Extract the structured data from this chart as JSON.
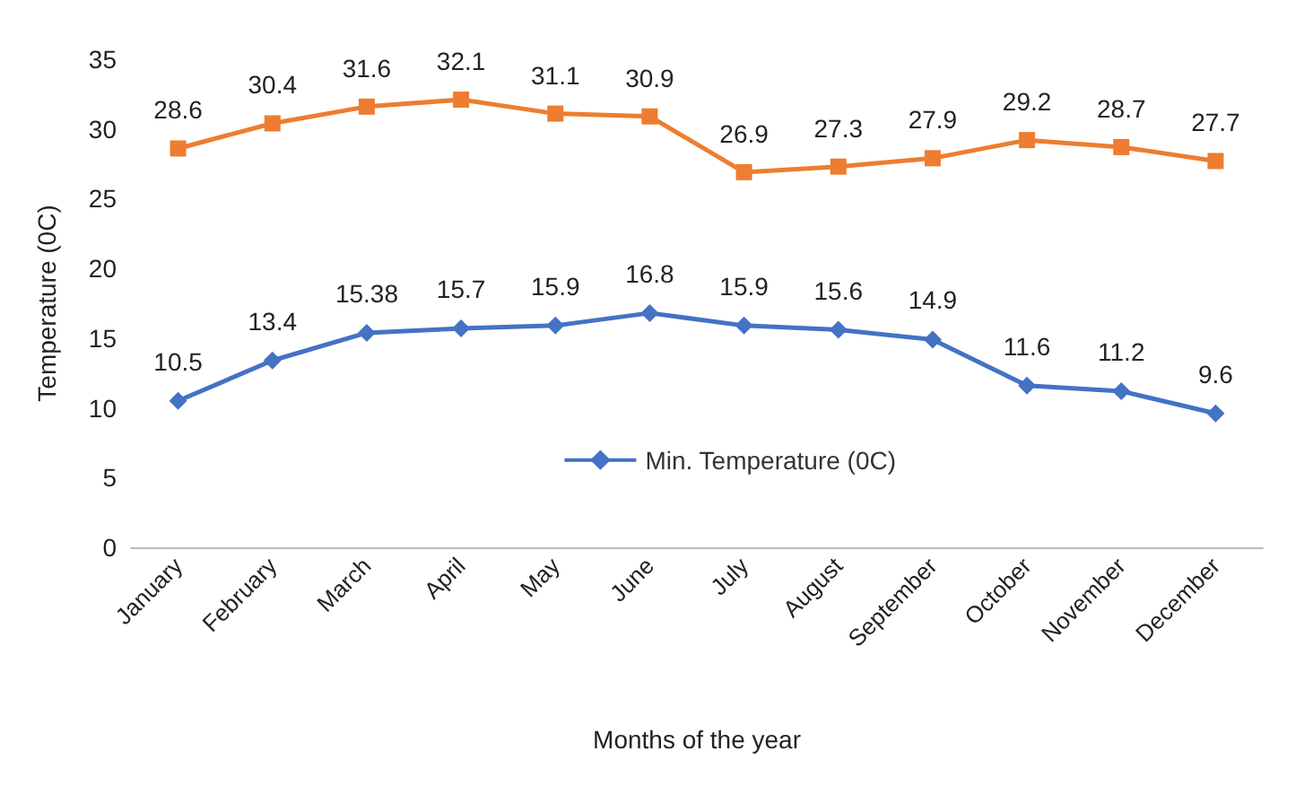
{
  "chart_data": {
    "type": "line",
    "xlabel": "Months of the year",
    "ylabel": "Temperature (0C)",
    "categories": [
      "January",
      "February",
      "March",
      "April",
      "May",
      "June",
      "July",
      "August",
      "September",
      "October",
      "November",
      "December"
    ],
    "series": [
      {
        "color": "#ed7d31",
        "marker": "square",
        "values": [
          28.6,
          30.4,
          31.6,
          32.1,
          31.1,
          30.9,
          26.9,
          27.3,
          27.9,
          29.2,
          28.7,
          27.7
        ]
      },
      {
        "name": "Min. Temperature (0C)",
        "color": "#4472c4",
        "marker": "diamond",
        "values": [
          10.5,
          13.4,
          15.38,
          15.7,
          15.9,
          16.8,
          15.9,
          15.6,
          14.9,
          11.6,
          11.2,
          9.6
        ]
      }
    ],
    "ylim": [
      0,
      35
    ],
    "yticks": [
      0,
      5,
      10,
      15,
      20,
      25,
      30,
      35
    ],
    "grid": false,
    "legend": "center",
    "data_labels": true,
    "line_style": "solid"
  }
}
